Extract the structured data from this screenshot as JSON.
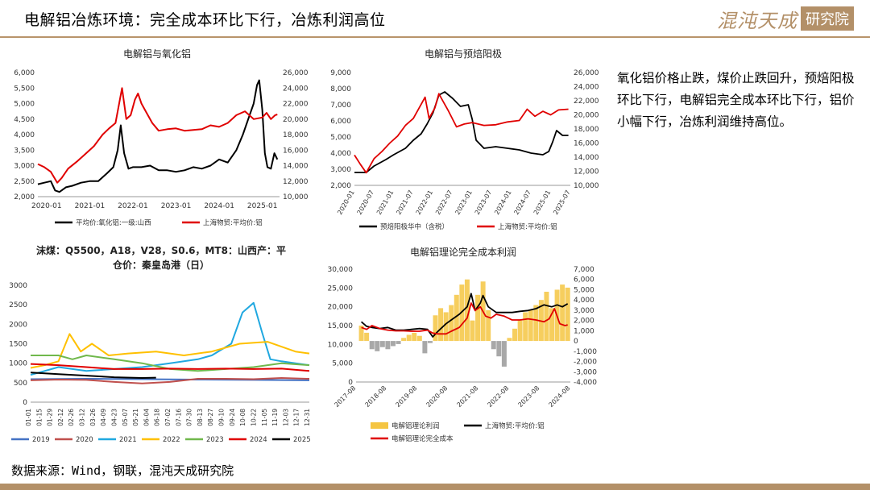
{
  "header": {
    "title": "电解铝冶炼环境：完全成本环比下行，冶炼利润高位",
    "logo_script": "混沌天成",
    "logo_box": "研究院"
  },
  "commentary": "氧化铝价格止跌，煤价止跌回升，预焙阳极环比下行，电解铝完全成本环比下行，铝价小幅下行，冶炼利润维持高位。",
  "footer": {
    "source": "数据来源：Wind，钢联，混沌天成研究院"
  },
  "chart_data": [
    {
      "id": "c1",
      "type": "line",
      "title": "电解铝与氧化铝",
      "x_ticks": [
        "2020-01",
        "2021-01",
        "2022-01",
        "2023-01",
        "2024-01",
        "2025-01"
      ],
      "y_left": {
        "lim": [
          2000,
          6000
        ],
        "ticks": [
          "2,000",
          "2,500",
          "3,000",
          "3,500",
          "4,000",
          "4,500",
          "5,000",
          "5,500",
          "6,000"
        ]
      },
      "y_right": {
        "lim": [
          10000,
          26000
        ],
        "ticks": [
          "10,000",
          "12,000",
          "14,000",
          "16,000",
          "18,000",
          "20,000",
          "22,000",
          "24,000",
          "26,000"
        ]
      },
      "series": [
        {
          "name": "平均价:氧化铝:一级:山西",
          "axis": "left",
          "color": "#000000",
          "x": [
            2019.8,
            2019.95,
            2020.1,
            2020.2,
            2020.3,
            2020.45,
            2020.6,
            2020.8,
            2021.0,
            2021.2,
            2021.4,
            2021.55,
            2021.65,
            2021.72,
            2021.8,
            2021.9,
            2022.0,
            2022.2,
            2022.4,
            2022.6,
            2022.8,
            2023.0,
            2023.2,
            2023.4,
            2023.6,
            2023.8,
            2024.0,
            2024.2,
            2024.4,
            2024.55,
            2024.7,
            2024.8,
            2024.88,
            2024.93,
            2025.0,
            2025.06,
            2025.12,
            2025.2,
            2025.28,
            2025.35
          ],
          "y": [
            2400,
            2450,
            2500,
            2200,
            2150,
            2300,
            2350,
            2450,
            2500,
            2500,
            2750,
            2950,
            3500,
            4300,
            3400,
            2900,
            2950,
            2950,
            3000,
            2850,
            2850,
            2800,
            2850,
            2950,
            2900,
            3000,
            3200,
            3100,
            3500,
            4000,
            4600,
            5000,
            5600,
            5750,
            4800,
            3400,
            2950,
            2900,
            3400,
            3200
          ]
        },
        {
          "name": "上海物贸:平均价:铝",
          "axis": "right",
          "color": "#e00000",
          "x": [
            2019.8,
            2019.95,
            2020.1,
            2020.25,
            2020.35,
            2020.5,
            2020.7,
            2020.9,
            2021.1,
            2021.3,
            2021.45,
            2021.6,
            2021.7,
            2021.75,
            2021.85,
            2021.95,
            2022.05,
            2022.12,
            2022.2,
            2022.3,
            2022.45,
            2022.6,
            2022.8,
            2023.0,
            2023.2,
            2023.4,
            2023.6,
            2023.8,
            2024.0,
            2024.2,
            2024.4,
            2024.6,
            2024.8,
            2025.0,
            2025.1,
            2025.2,
            2025.3,
            2025.35
          ],
          "y": [
            14200,
            13800,
            13200,
            11800,
            12400,
            13600,
            14500,
            15500,
            16500,
            18000,
            18800,
            19500,
            22500,
            24000,
            20000,
            20500,
            22500,
            23300,
            22000,
            21000,
            19500,
            18500,
            18700,
            18800,
            18500,
            18600,
            18700,
            19200,
            19000,
            19500,
            20500,
            21000,
            20000,
            20200,
            20800,
            20000,
            20500,
            20600
          ]
        }
      ]
    },
    {
      "id": "c2",
      "type": "line",
      "title": "电解铝与预焙阳极",
      "x_ticks": [
        "2020-01",
        "2020-07",
        "2021-01",
        "2021-07",
        "2022-01",
        "2022-07",
        "2023-01",
        "2023-07",
        "2024-01",
        "2024-07",
        "2025-01",
        "2025-07"
      ],
      "y_left": {
        "lim": [
          2000,
          9000
        ],
        "ticks": [
          "2,000",
          "3,000",
          "4,000",
          "5,000",
          "6,000",
          "7,000",
          "8,000",
          "9,000"
        ]
      },
      "y_right": {
        "lim": [
          10000,
          26000
        ],
        "ticks": [
          "10,000",
          "12,000",
          "14,000",
          "16,000",
          "18,000",
          "20,000",
          "22,000",
          "24,000",
          "26,000"
        ]
      },
      "series": [
        {
          "name": "预焙阳极华中（含税）",
          "axis": "left",
          "color": "#000000",
          "x": [
            2020.0,
            2020.3,
            2020.5,
            2020.8,
            2021.0,
            2021.3,
            2021.5,
            2021.7,
            2021.85,
            2022.0,
            2022.15,
            2022.3,
            2022.5,
            2022.7,
            2022.9,
            2023.0,
            2023.1,
            2023.3,
            2023.6,
            2023.9,
            2024.2,
            2024.5,
            2024.8,
            2024.95,
            2025.05,
            2025.15,
            2025.3,
            2025.45
          ],
          "y": [
            2800,
            2800,
            3200,
            3600,
            3900,
            4300,
            4800,
            5200,
            5800,
            6500,
            7600,
            7800,
            7400,
            6900,
            7000,
            6100,
            4800,
            4300,
            4400,
            4300,
            4200,
            4000,
            3900,
            4100,
            4700,
            5400,
            5100,
            5100
          ]
        },
        {
          "name": "上海物贸:平均价:铝",
          "axis": "right",
          "color": "#e00000",
          "x": [
            2020.0,
            2020.15,
            2020.3,
            2020.5,
            2020.7,
            2020.9,
            2021.1,
            2021.3,
            2021.5,
            2021.7,
            2021.8,
            2021.9,
            2022.05,
            2022.15,
            2022.25,
            2022.4,
            2022.6,
            2022.8,
            2023.0,
            2023.3,
            2023.6,
            2023.9,
            2024.2,
            2024.4,
            2024.6,
            2024.8,
            2025.0,
            2025.2,
            2025.45
          ],
          "y": [
            14300,
            13000,
            11800,
            13800,
            14800,
            16000,
            17000,
            18500,
            19500,
            21500,
            22500,
            19500,
            21000,
            23000,
            22000,
            20500,
            18300,
            18700,
            18900,
            18500,
            18600,
            19000,
            19200,
            20800,
            19800,
            20500,
            20000,
            20700,
            20800
          ]
        }
      ]
    },
    {
      "id": "c3",
      "type": "line",
      "title": "沫煤：Q5500，A18，V28，S0.6，MT8：山西产：平仓价：秦皇岛港（日）",
      "x_ticks": [
        "01-01",
        "01-15",
        "01-29",
        "02-12",
        "02-26",
        "03-12",
        "03-26",
        "04-09",
        "04-23",
        "05-07",
        "05-21",
        "06-04",
        "06-18",
        "07-02",
        "07-16",
        "07-30",
        "08-13",
        "08-27",
        "09-10",
        "09-24",
        "10-08",
        "10-22",
        "11-05",
        "11-19",
        "12-03",
        "12-17",
        "12-31"
      ],
      "y_left": {
        "lim": [
          0,
          3000
        ],
        "ticks": [
          "0",
          "500",
          "1000",
          "1500",
          "2000",
          "2500",
          "3000"
        ]
      },
      "series": [
        {
          "name": "2019",
          "color": "#4472c4",
          "x": [
            0,
            0.2,
            0.4,
            0.6,
            0.8,
            1.0
          ],
          "y": [
            590,
            600,
            590,
            580,
            570,
            560
          ]
        },
        {
          "name": "2020",
          "color": "#c0504d",
          "x": [
            0,
            0.1,
            0.2,
            0.3,
            0.4,
            0.5,
            0.6,
            0.7,
            0.8,
            0.9,
            1.0
          ],
          "y": [
            560,
            580,
            570,
            520,
            480,
            520,
            600,
            600,
            590,
            620,
            600
          ]
        },
        {
          "name": "2021",
          "color": "#20a8e0",
          "x": [
            0,
            0.1,
            0.2,
            0.3,
            0.4,
            0.5,
            0.6,
            0.65,
            0.72,
            0.76,
            0.8,
            0.83,
            0.86,
            0.9,
            0.95,
            1.0
          ],
          "y": [
            700,
            900,
            800,
            850,
            900,
            1000,
            1100,
            1200,
            1500,
            2300,
            2550,
            1800,
            1100,
            1050,
            1000,
            950
          ]
        },
        {
          "name": "2022",
          "color": "#ffc000",
          "x": [
            0,
            0.05,
            0.1,
            0.14,
            0.18,
            0.22,
            0.28,
            0.35,
            0.45,
            0.55,
            0.65,
            0.75,
            0.85,
            0.95,
            1.0
          ],
          "y": [
            880,
            950,
            1050,
            1750,
            1300,
            1500,
            1200,
            1250,
            1300,
            1200,
            1300,
            1500,
            1550,
            1300,
            1250
          ]
        },
        {
          "name": "2023",
          "color": "#70b84c",
          "x": [
            0,
            0.1,
            0.15,
            0.2,
            0.3,
            0.4,
            0.5,
            0.6,
            0.7,
            0.8,
            0.9,
            1.0
          ],
          "y": [
            1200,
            1200,
            1100,
            1200,
            1100,
            1000,
            850,
            800,
            850,
            900,
            1000,
            950
          ]
        },
        {
          "name": "2024",
          "color": "#e00000",
          "x": [
            0,
            0.1,
            0.2,
            0.3,
            0.4,
            0.5,
            0.6,
            0.7,
            0.8,
            0.9,
            1.0
          ],
          "y": [
            980,
            950,
            900,
            850,
            850,
            860,
            850,
            860,
            850,
            860,
            800
          ]
        },
        {
          "name": "2025",
          "color": "#000000",
          "x": [
            0,
            0.1,
            0.2,
            0.3,
            0.4,
            0.45
          ],
          "y": [
            760,
            720,
            680,
            640,
            620,
            630
          ]
        }
      ]
    },
    {
      "id": "c4",
      "type": "line",
      "title": "电解铝理论完全成本利润",
      "x_ticks": [
        "2017-08",
        "2018-08",
        "2019-08",
        "2020-08",
        "2021-08",
        "2022-08",
        "2023-08",
        "2024-08"
      ],
      "y_left": {
        "lim": [
          0,
          30000
        ],
        "ticks": [
          "0",
          "5,000",
          "10,000",
          "15,000",
          "20,000",
          "25,000",
          "30,000"
        ]
      },
      "y_right": {
        "lim": [
          -4000,
          7000
        ],
        "ticks": [
          "-4,000",
          "-3,000",
          "-2,000",
          "-1,000",
          "0",
          "1,000",
          "2,000",
          "3,000",
          "4,000",
          "5,000",
          "6,000",
          "7,000"
        ]
      },
      "series": [
        {
          "name": "电解铝理论利润",
          "axis": "right",
          "color": "#f5c542",
          "style": "bar",
          "x": [
            2017.6,
            2017.8,
            2018.0,
            2018.2,
            2018.4,
            2018.6,
            2018.8,
            2019.0,
            2019.2,
            2019.4,
            2019.6,
            2019.8,
            2020.0,
            2020.2,
            2020.4,
            2020.6,
            2020.8,
            2021.0,
            2021.2,
            2021.4,
            2021.6,
            2021.8,
            2022.0,
            2022.2,
            2022.4,
            2022.6,
            2022.8,
            2023.0,
            2023.2,
            2023.4,
            2023.6,
            2023.8,
            2024.0,
            2024.2,
            2024.4,
            2024.6,
            2024.8,
            2025.0,
            2025.2,
            2025.4
          ],
          "y": [
            1500,
            800,
            -800,
            -1000,
            -600,
            -800,
            -500,
            -300,
            300,
            600,
            800,
            500,
            -1200,
            -200,
            2500,
            3200,
            2800,
            3500,
            4500,
            5500,
            6000,
            2000,
            4500,
            5800,
            3000,
            -800,
            -1500,
            -2500,
            300,
            1200,
            2000,
            2800,
            3000,
            3500,
            4000,
            4800,
            3200,
            5000,
            5500,
            5200
          ]
        },
        {
          "name": "上海物贸:平均价:铝",
          "axis": "left",
          "color": "#000000",
          "x": [
            2017.6,
            2017.8,
            2018.0,
            2018.3,
            2018.6,
            2018.9,
            2019.2,
            2019.5,
            2019.8,
            2020.1,
            2020.3,
            2020.5,
            2020.8,
            2021.0,
            2021.3,
            2021.6,
            2021.75,
            2021.9,
            2022.1,
            2022.2,
            2022.4,
            2022.7,
            2023.0,
            2023.3,
            2023.6,
            2023.9,
            2024.2,
            2024.5,
            2024.8,
            2025.0,
            2025.2,
            2025.4
          ],
          "y": [
            16000,
            14800,
            14500,
            14200,
            14500,
            13800,
            13800,
            14000,
            14200,
            14000,
            12000,
            13500,
            15500,
            16500,
            18000,
            20000,
            23500,
            19000,
            21000,
            23000,
            20000,
            18500,
            18500,
            18500,
            18800,
            19000,
            19500,
            20500,
            20000,
            20500,
            20000,
            20800
          ]
        },
        {
          "name": "电解铝理论完全成本",
          "axis": "left",
          "color": "#e00000",
          "x": [
            2017.6,
            2017.8,
            2018.0,
            2018.3,
            2018.6,
            2018.9,
            2019.2,
            2019.5,
            2019.8,
            2020.1,
            2020.3,
            2020.5,
            2020.8,
            2021.0,
            2021.3,
            2021.6,
            2021.75,
            2021.9,
            2022.1,
            2022.3,
            2022.5,
            2022.7,
            2023.0,
            2023.3,
            2023.6,
            2023.9,
            2024.2,
            2024.5,
            2024.7,
            2024.9,
            2025.1,
            2025.3,
            2025.4
          ],
          "y": [
            14500,
            14000,
            15000,
            14200,
            13800,
            13600,
            13600,
            13500,
            13500,
            13800,
            13000,
            12800,
            12800,
            13500,
            14500,
            17000,
            21000,
            19000,
            20000,
            17500,
            17000,
            18000,
            17500,
            16500,
            16500,
            16800,
            16500,
            16000,
            16800,
            19500,
            15500,
            15000,
            15200
          ]
        }
      ]
    }
  ]
}
